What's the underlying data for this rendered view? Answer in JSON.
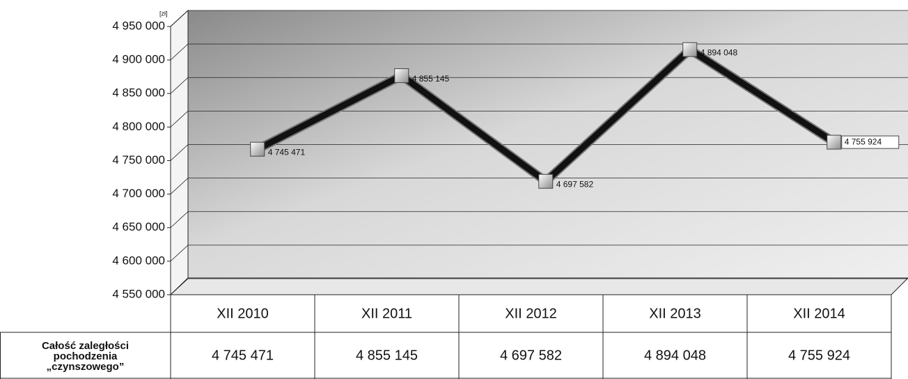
{
  "chart_data": {
    "type": "line",
    "y_unit": "[zł]",
    "categories": [
      "XII 2010",
      "XII 2011",
      "XII 2012",
      "XII 2013",
      "XII 2014"
    ],
    "series": [
      {
        "name": "Całość zaległości pochodzenia „czynszowego”",
        "color": "#111111",
        "values": [
          4745471,
          4855145,
          4697582,
          4894048,
          4755924
        ],
        "value_labels": [
          "4 745 471",
          "4 855 145",
          "4 697 582",
          "4 894 048",
          "4 755 924"
        ]
      }
    ],
    "ylim": [
      4550000,
      4950000
    ],
    "yticks": [
      {
        "value": 4550000,
        "label": "4 550 000"
      },
      {
        "value": 4600000,
        "label": "4 600 000"
      },
      {
        "value": 4650000,
        "label": "4 650 000"
      },
      {
        "value": 4700000,
        "label": "4 700 000"
      },
      {
        "value": 4750000,
        "label": "4 750 000"
      },
      {
        "value": 4800000,
        "label": "4 800 000"
      },
      {
        "value": 4850000,
        "label": "4 850 000"
      },
      {
        "value": 4900000,
        "label": "4 900 000"
      },
      {
        "value": 4950000,
        "label": "4 950 000"
      }
    ],
    "grid": true
  }
}
